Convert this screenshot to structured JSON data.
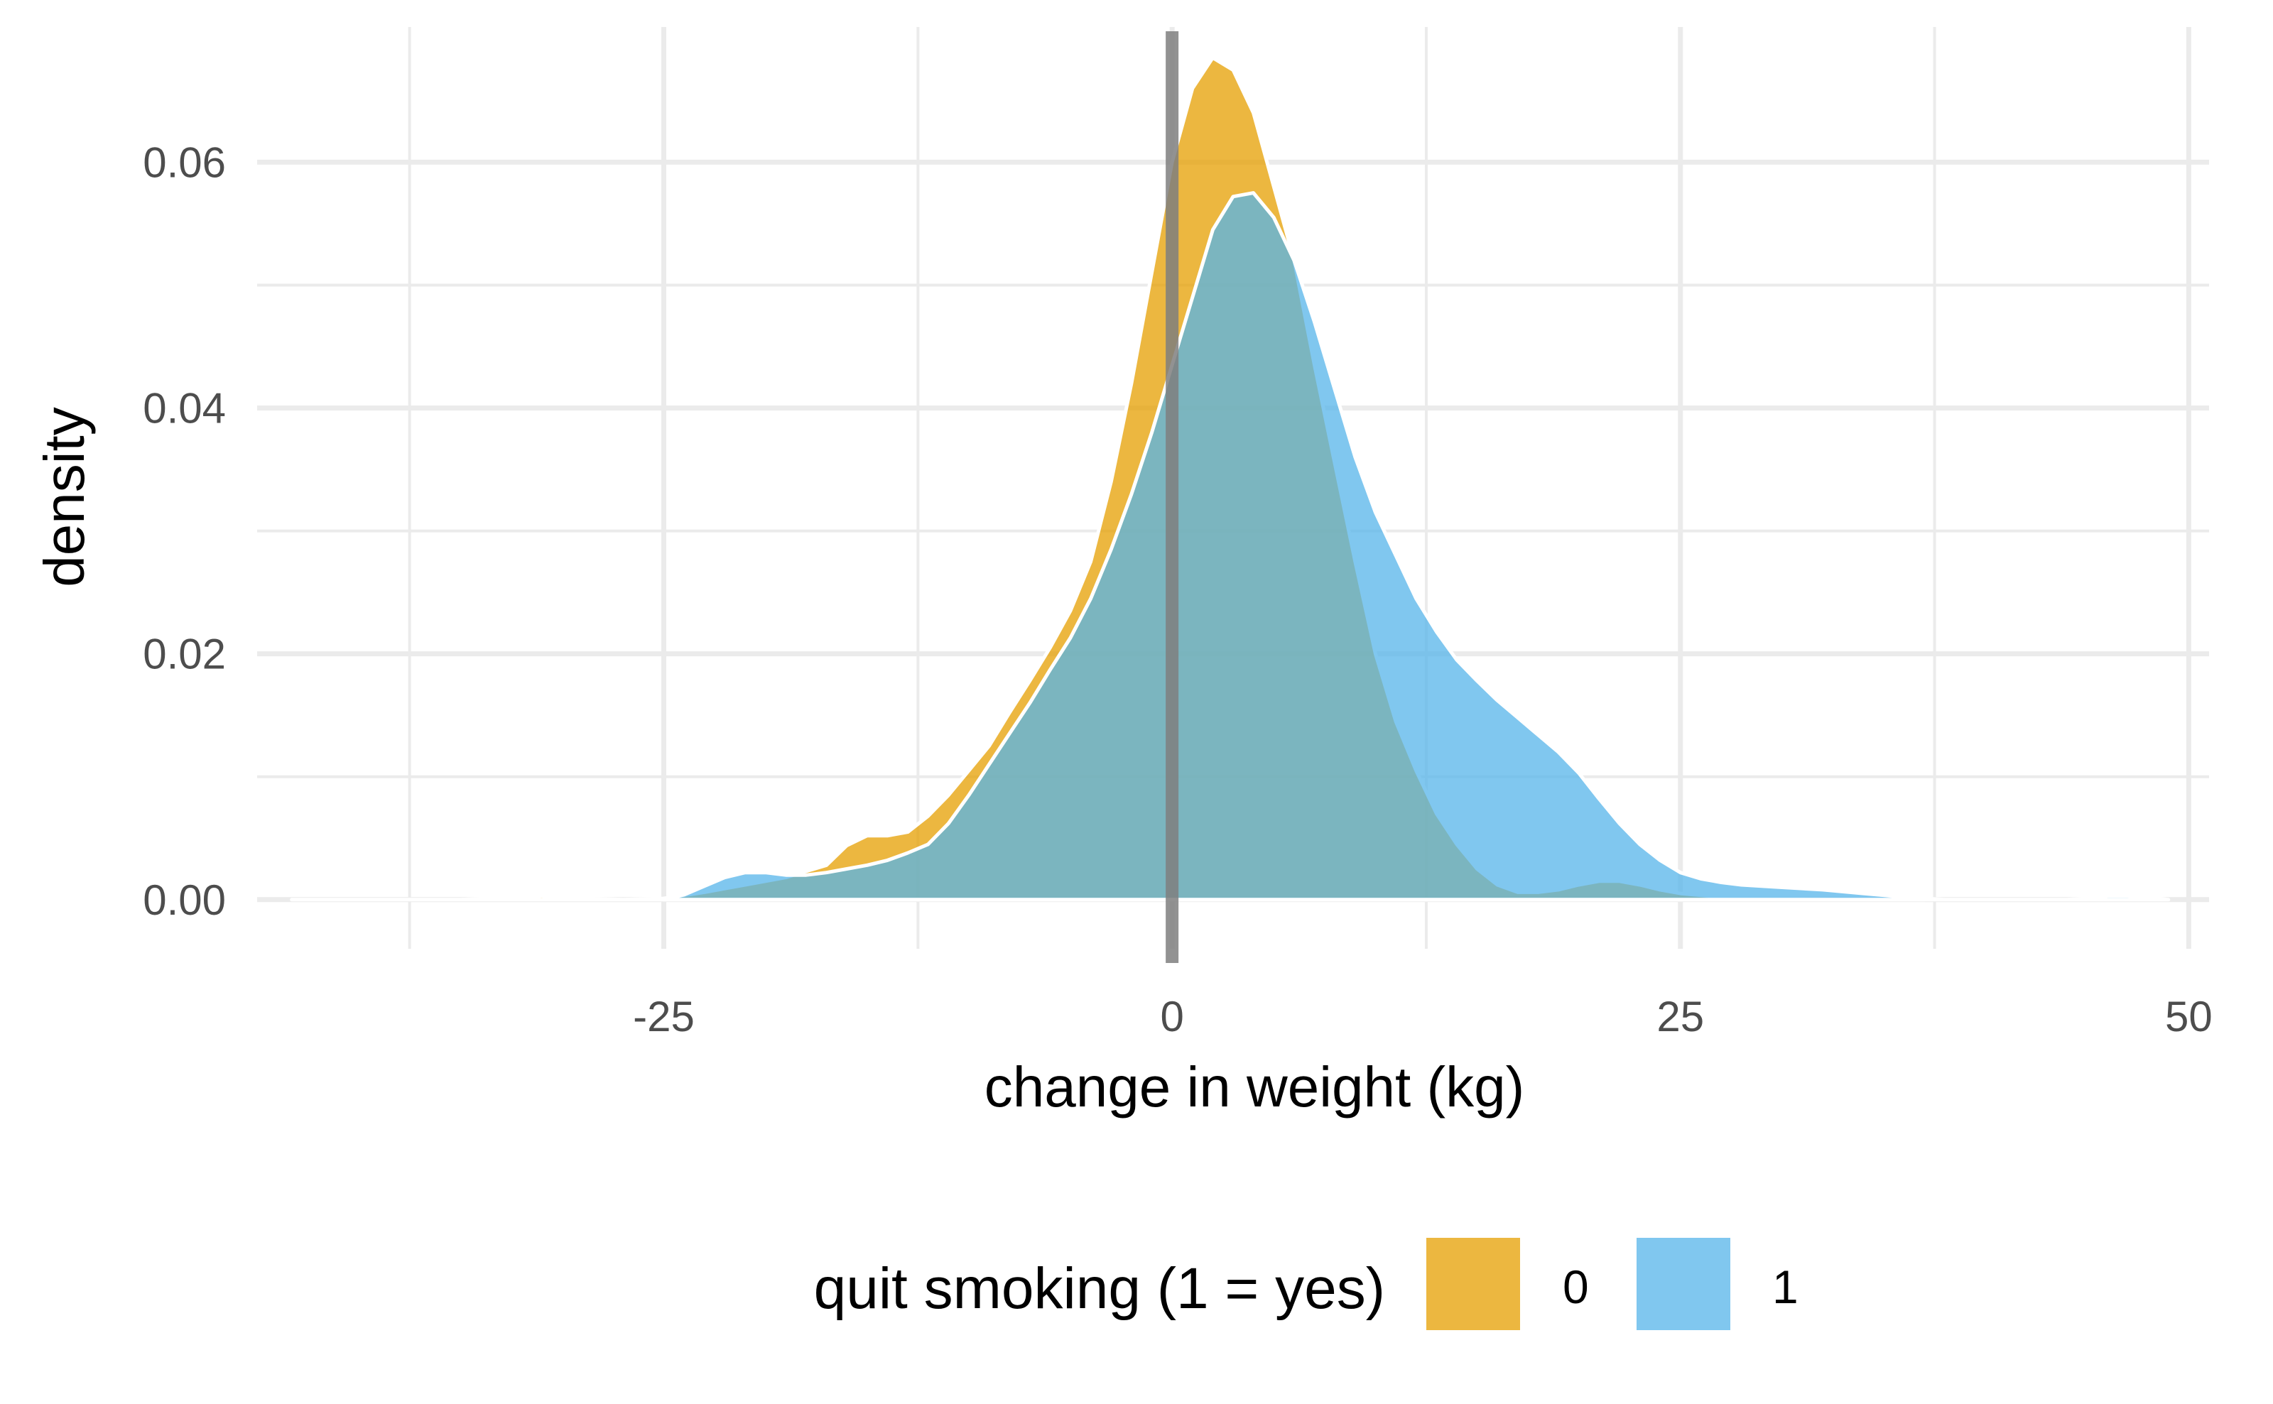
{
  "chart_data": {
    "type": "area",
    "chart_subtype": "density",
    "title": "",
    "xlabel": "change in weight (kg)",
    "ylabel": "density",
    "xlim": [
      -45,
      51
    ],
    "ylim": [
      -0.004,
      0.071
    ],
    "x_ticks": [
      -25,
      0,
      25,
      50
    ],
    "x_tick_labels": [
      "-25",
      "0",
      "25",
      "50"
    ],
    "y_ticks": [
      0.0,
      0.02,
      0.04,
      0.06
    ],
    "y_tick_labels": [
      "0.00",
      "0.02",
      "0.04",
      "0.06"
    ],
    "grid": true,
    "reference_line": {
      "x": 0,
      "color": "#7f7f7f"
    },
    "legend": {
      "title": "quit smoking (1 = yes)",
      "position": "bottom"
    },
    "series": [
      {
        "name": "0",
        "color": "#E69F00",
        "x": [
          -43.3,
          -40,
          -35,
          -31,
          -29,
          -27,
          -25,
          -23,
          -21,
          -19,
          -17,
          -16,
          -15,
          -14,
          -13,
          -12,
          -11,
          -10,
          -9,
          -8,
          -7,
          -6,
          -5,
          -4,
          -3,
          -2,
          -1,
          0,
          1,
          2,
          3,
          4,
          5,
          6,
          7,
          8,
          9,
          10,
          11,
          12,
          13,
          14,
          15,
          16,
          17,
          18,
          19,
          20,
          21,
          22,
          23,
          24,
          25,
          27,
          30,
          33,
          36,
          37
        ],
        "y": [
          0.0,
          0.0,
          0.0,
          0.0003,
          0.0001,
          0.0,
          0.0001,
          0.0006,
          0.0012,
          0.0018,
          0.0028,
          0.0044,
          0.0052,
          0.0052,
          0.0055,
          0.0068,
          0.0085,
          0.0105,
          0.0125,
          0.0152,
          0.0178,
          0.0205,
          0.0235,
          0.0275,
          0.034,
          0.042,
          0.051,
          0.06,
          0.066,
          0.0685,
          0.0675,
          0.064,
          0.058,
          0.052,
          0.0435,
          0.0355,
          0.0275,
          0.02,
          0.0145,
          0.0105,
          0.007,
          0.0045,
          0.0025,
          0.0012,
          0.0006,
          0.0006,
          0.0008,
          0.0012,
          0.0015,
          0.0015,
          0.0012,
          0.0008,
          0.0005,
          0.0002,
          0.0001,
          0.0,
          0.0,
          0.0
        ]
      },
      {
        "name": "1",
        "color": "#56B4E9",
        "x": [
          -25,
          -24,
          -23,
          -22,
          -21,
          -20,
          -19,
          -18,
          -17,
          -16,
          -15,
          -14,
          -13,
          -12,
          -11,
          -10,
          -9,
          -8,
          -7,
          -6,
          -5,
          -4,
          -3,
          -2,
          -1,
          0,
          1,
          2,
          3,
          4,
          5,
          6,
          7,
          8,
          9,
          10,
          11,
          12,
          13,
          14,
          15,
          16,
          17,
          18,
          19,
          20,
          21,
          22,
          23,
          24,
          25,
          26,
          27,
          28,
          30,
          32,
          34,
          36,
          38,
          40,
          42,
          44,
          45,
          46,
          47,
          48,
          49
        ],
        "y": [
          0.0,
          0.0004,
          0.0011,
          0.0018,
          0.0022,
          0.0022,
          0.002,
          0.002,
          0.0022,
          0.0025,
          0.0028,
          0.0032,
          0.0038,
          0.0045,
          0.0062,
          0.0085,
          0.011,
          0.0135,
          0.016,
          0.0187,
          0.0213,
          0.0245,
          0.0285,
          0.033,
          0.038,
          0.0435,
          0.049,
          0.0545,
          0.0572,
          0.0575,
          0.0555,
          0.052,
          0.047,
          0.0415,
          0.036,
          0.0315,
          0.028,
          0.0245,
          0.0218,
          0.0195,
          0.0178,
          0.0162,
          0.0148,
          0.0134,
          0.012,
          0.0103,
          0.0082,
          0.0062,
          0.0045,
          0.0032,
          0.0022,
          0.0017,
          0.0014,
          0.0012,
          0.001,
          0.0008,
          0.0005,
          0.0002,
          0.0,
          0.0,
          0.0,
          0.0,
          0.0001,
          0.0003,
          0.0003,
          0.0002,
          0.0
        ]
      }
    ]
  }
}
